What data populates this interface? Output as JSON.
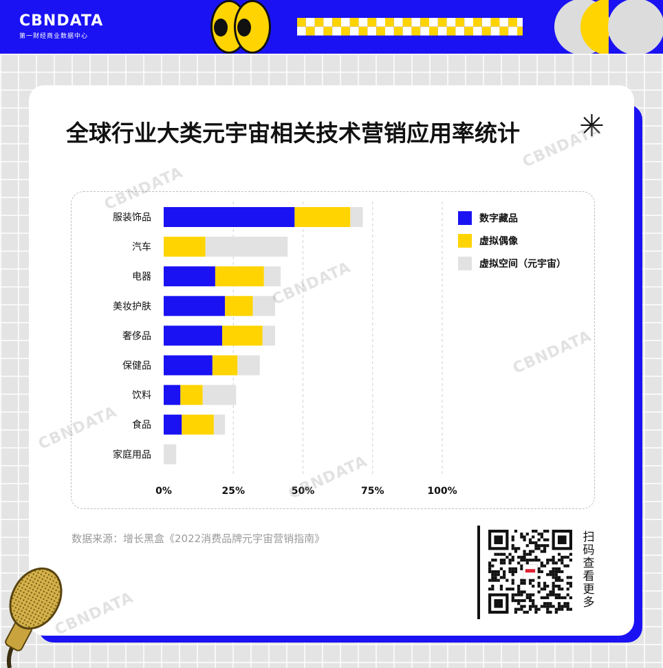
{
  "brand": {
    "name": "CBNDATA",
    "tagline": "第一财经商业数据中心"
  },
  "title": "全球行业大类元宇宙相关技术营销应用率统计",
  "source": "数据来源：增长黑盒《2022消费品牌元宇宙营销指南》",
  "qr_caption": "扫码查看更多",
  "colors": {
    "brand_blue": "#1a12f2",
    "accent_yellow": "#ffd400",
    "light_grey": "#e2e2e2"
  },
  "chart_data": {
    "type": "bar",
    "orientation": "horizontal",
    "stacked": true,
    "categories": [
      "服装饰品",
      "汽车",
      "电器",
      "美妆护肤",
      "奢侈品",
      "保健品",
      "饮料",
      "食品",
      "家庭用品"
    ],
    "series": [
      {
        "name": "数字藏品",
        "color": "#1a12f2",
        "values": [
          47,
          0,
          18.5,
          22,
          21,
          17.5,
          6,
          6.5,
          0
        ]
      },
      {
        "name": "虚拟偶像",
        "color": "#ffd400",
        "values": [
          20,
          15,
          17.5,
          10,
          14.5,
          9,
          8,
          11.5,
          0
        ]
      },
      {
        "name": "虚拟空间（元宇宙）",
        "color": "#e2e2e2",
        "values": [
          4.5,
          29.5,
          6,
          8,
          4.5,
          8,
          12,
          4,
          4.5
        ]
      }
    ],
    "xlim": [
      0,
      100
    ],
    "xticks": [
      "0%",
      "25%",
      "50%",
      "75%",
      "100%"
    ],
    "grid": "vertical-dashed",
    "legend": "right"
  }
}
